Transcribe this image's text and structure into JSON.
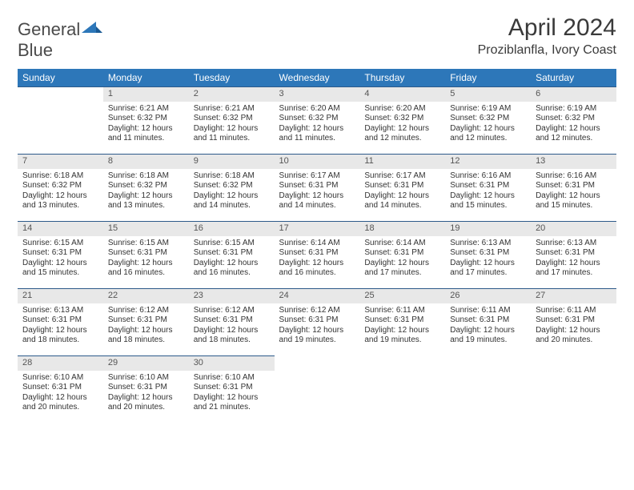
{
  "logo": {
    "text_general": "General",
    "text_blue": "Blue"
  },
  "title": "April 2024",
  "location": "Proziblanfla, Ivory Coast",
  "colors": {
    "header_bg": "#2d77b9",
    "header_text": "#ffffff",
    "daynum_bg": "#e8e8e8",
    "border": "#2d5a8a",
    "text": "#333333"
  },
  "weekdays": [
    "Sunday",
    "Monday",
    "Tuesday",
    "Wednesday",
    "Thursday",
    "Friday",
    "Saturday"
  ],
  "weeks": [
    [
      null,
      {
        "n": "1",
        "sr": "Sunrise: 6:21 AM",
        "ss": "Sunset: 6:32 PM",
        "d1": "Daylight: 12 hours",
        "d2": "and 11 minutes."
      },
      {
        "n": "2",
        "sr": "Sunrise: 6:21 AM",
        "ss": "Sunset: 6:32 PM",
        "d1": "Daylight: 12 hours",
        "d2": "and 11 minutes."
      },
      {
        "n": "3",
        "sr": "Sunrise: 6:20 AM",
        "ss": "Sunset: 6:32 PM",
        "d1": "Daylight: 12 hours",
        "d2": "and 11 minutes."
      },
      {
        "n": "4",
        "sr": "Sunrise: 6:20 AM",
        "ss": "Sunset: 6:32 PM",
        "d1": "Daylight: 12 hours",
        "d2": "and 12 minutes."
      },
      {
        "n": "5",
        "sr": "Sunrise: 6:19 AM",
        "ss": "Sunset: 6:32 PM",
        "d1": "Daylight: 12 hours",
        "d2": "and 12 minutes."
      },
      {
        "n": "6",
        "sr": "Sunrise: 6:19 AM",
        "ss": "Sunset: 6:32 PM",
        "d1": "Daylight: 12 hours",
        "d2": "and 12 minutes."
      }
    ],
    [
      {
        "n": "7",
        "sr": "Sunrise: 6:18 AM",
        "ss": "Sunset: 6:32 PM",
        "d1": "Daylight: 12 hours",
        "d2": "and 13 minutes."
      },
      {
        "n": "8",
        "sr": "Sunrise: 6:18 AM",
        "ss": "Sunset: 6:32 PM",
        "d1": "Daylight: 12 hours",
        "d2": "and 13 minutes."
      },
      {
        "n": "9",
        "sr": "Sunrise: 6:18 AM",
        "ss": "Sunset: 6:32 PM",
        "d1": "Daylight: 12 hours",
        "d2": "and 14 minutes."
      },
      {
        "n": "10",
        "sr": "Sunrise: 6:17 AM",
        "ss": "Sunset: 6:31 PM",
        "d1": "Daylight: 12 hours",
        "d2": "and 14 minutes."
      },
      {
        "n": "11",
        "sr": "Sunrise: 6:17 AM",
        "ss": "Sunset: 6:31 PM",
        "d1": "Daylight: 12 hours",
        "d2": "and 14 minutes."
      },
      {
        "n": "12",
        "sr": "Sunrise: 6:16 AM",
        "ss": "Sunset: 6:31 PM",
        "d1": "Daylight: 12 hours",
        "d2": "and 15 minutes."
      },
      {
        "n": "13",
        "sr": "Sunrise: 6:16 AM",
        "ss": "Sunset: 6:31 PM",
        "d1": "Daylight: 12 hours",
        "d2": "and 15 minutes."
      }
    ],
    [
      {
        "n": "14",
        "sr": "Sunrise: 6:15 AM",
        "ss": "Sunset: 6:31 PM",
        "d1": "Daylight: 12 hours",
        "d2": "and 15 minutes."
      },
      {
        "n": "15",
        "sr": "Sunrise: 6:15 AM",
        "ss": "Sunset: 6:31 PM",
        "d1": "Daylight: 12 hours",
        "d2": "and 16 minutes."
      },
      {
        "n": "16",
        "sr": "Sunrise: 6:15 AM",
        "ss": "Sunset: 6:31 PM",
        "d1": "Daylight: 12 hours",
        "d2": "and 16 minutes."
      },
      {
        "n": "17",
        "sr": "Sunrise: 6:14 AM",
        "ss": "Sunset: 6:31 PM",
        "d1": "Daylight: 12 hours",
        "d2": "and 16 minutes."
      },
      {
        "n": "18",
        "sr": "Sunrise: 6:14 AM",
        "ss": "Sunset: 6:31 PM",
        "d1": "Daylight: 12 hours",
        "d2": "and 17 minutes."
      },
      {
        "n": "19",
        "sr": "Sunrise: 6:13 AM",
        "ss": "Sunset: 6:31 PM",
        "d1": "Daylight: 12 hours",
        "d2": "and 17 minutes."
      },
      {
        "n": "20",
        "sr": "Sunrise: 6:13 AM",
        "ss": "Sunset: 6:31 PM",
        "d1": "Daylight: 12 hours",
        "d2": "and 17 minutes."
      }
    ],
    [
      {
        "n": "21",
        "sr": "Sunrise: 6:13 AM",
        "ss": "Sunset: 6:31 PM",
        "d1": "Daylight: 12 hours",
        "d2": "and 18 minutes."
      },
      {
        "n": "22",
        "sr": "Sunrise: 6:12 AM",
        "ss": "Sunset: 6:31 PM",
        "d1": "Daylight: 12 hours",
        "d2": "and 18 minutes."
      },
      {
        "n": "23",
        "sr": "Sunrise: 6:12 AM",
        "ss": "Sunset: 6:31 PM",
        "d1": "Daylight: 12 hours",
        "d2": "and 18 minutes."
      },
      {
        "n": "24",
        "sr": "Sunrise: 6:12 AM",
        "ss": "Sunset: 6:31 PM",
        "d1": "Daylight: 12 hours",
        "d2": "and 19 minutes."
      },
      {
        "n": "25",
        "sr": "Sunrise: 6:11 AM",
        "ss": "Sunset: 6:31 PM",
        "d1": "Daylight: 12 hours",
        "d2": "and 19 minutes."
      },
      {
        "n": "26",
        "sr": "Sunrise: 6:11 AM",
        "ss": "Sunset: 6:31 PM",
        "d1": "Daylight: 12 hours",
        "d2": "and 19 minutes."
      },
      {
        "n": "27",
        "sr": "Sunrise: 6:11 AM",
        "ss": "Sunset: 6:31 PM",
        "d1": "Daylight: 12 hours",
        "d2": "and 20 minutes."
      }
    ],
    [
      {
        "n": "28",
        "sr": "Sunrise: 6:10 AM",
        "ss": "Sunset: 6:31 PM",
        "d1": "Daylight: 12 hours",
        "d2": "and 20 minutes."
      },
      {
        "n": "29",
        "sr": "Sunrise: 6:10 AM",
        "ss": "Sunset: 6:31 PM",
        "d1": "Daylight: 12 hours",
        "d2": "and 20 minutes."
      },
      {
        "n": "30",
        "sr": "Sunrise: 6:10 AM",
        "ss": "Sunset: 6:31 PM",
        "d1": "Daylight: 12 hours",
        "d2": "and 21 minutes."
      },
      null,
      null,
      null,
      null
    ]
  ]
}
